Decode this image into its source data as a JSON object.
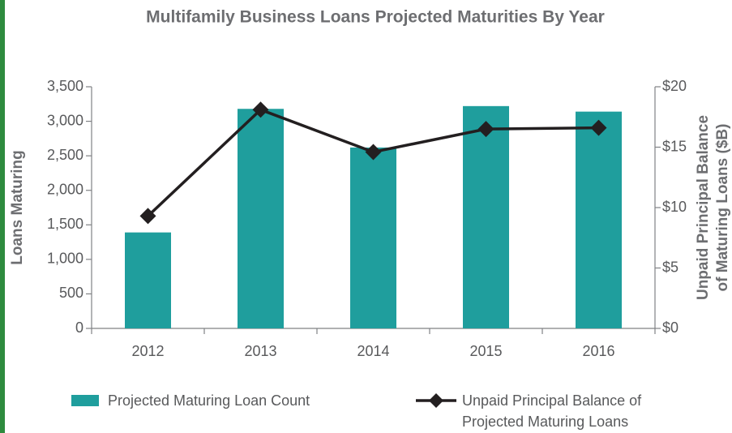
{
  "chart_data": {
    "type": "bar",
    "title": "Multifamily Business Loans Projected Maturities By Year",
    "ylabel": "Loans Maturing",
    "y2label": [
      "Unpaid Principal Balance",
      "of Maturing Loans ($B)"
    ],
    "categories": [
      "2012",
      "2013",
      "2014",
      "2015",
      "2016"
    ],
    "series": [
      {
        "name": "Projected Maturing Loan Count",
        "type": "bar",
        "color": "#1f9e9d",
        "values": [
          1390,
          3180,
          2620,
          3220,
          3140
        ]
      },
      {
        "name": "Unpaid Principal Balance of Projected Maturing Loans",
        "type": "line",
        "axis": "y2",
        "color": "#231f20",
        "values": [
          9.3,
          18.1,
          14.6,
          16.5,
          16.6
        ]
      }
    ],
    "ylim": [
      0,
      3500
    ],
    "yticks": [
      0,
      500,
      {
        "value": 1000,
        "label": "1,000"
      },
      {
        "value": 1500,
        "label": "1,500"
      },
      {
        "value": 2000,
        "label": "2,000"
      },
      {
        "value": 2500,
        "label": "2,500"
      },
      {
        "value": 3000,
        "label": "3,000"
      },
      {
        "value": 3500,
        "label": "3,500"
      }
    ],
    "y2lim": [
      0,
      20
    ],
    "y2ticks": [
      {
        "value": 0,
        "label": "$0"
      },
      {
        "value": 5,
        "label": "$5"
      },
      {
        "value": 10,
        "label": "$10"
      },
      {
        "value": 15,
        "label": "$15"
      },
      {
        "value": 20,
        "label": "$20"
      }
    ],
    "legend": "bottom"
  }
}
